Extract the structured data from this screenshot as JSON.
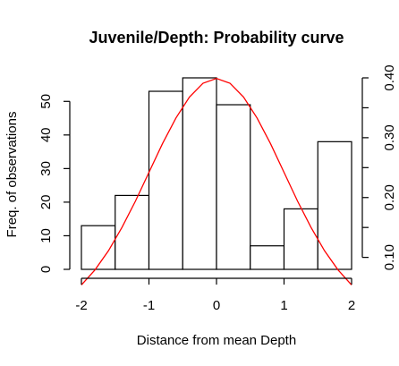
{
  "chart_data": {
    "type": "bar",
    "title": "Juvenile/Depth: Probability curve",
    "xlabel": "Distance from mean Depth",
    "ylabel": "Freq. of observations",
    "bins": [
      {
        "from": -2.0,
        "to": -1.5,
        "value": 13
      },
      {
        "from": -1.5,
        "to": -1.0,
        "value": 22
      },
      {
        "from": -1.0,
        "to": -0.5,
        "value": 53
      },
      {
        "from": -0.5,
        "to": 0.0,
        "value": 57
      },
      {
        "from": 0.0,
        "to": 0.5,
        "value": 49
      },
      {
        "from": 0.5,
        "to": 1.0,
        "value": 7
      },
      {
        "from": 1.0,
        "to": 1.5,
        "value": 18
      },
      {
        "from": 1.5,
        "to": 2.0,
        "value": 38
      }
    ],
    "xlim": [
      -2,
      2
    ],
    "ylim": [
      0,
      57
    ],
    "y2lim": [
      0.08,
      0.4
    ],
    "x_ticks": [
      -2,
      -1,
      0,
      1,
      2
    ],
    "x_tick_labels": [
      "-2",
      "-1",
      "0",
      "1",
      "2"
    ],
    "y_ticks": [
      0,
      10,
      20,
      30,
      40,
      50
    ],
    "y_tick_labels": [
      "0",
      "10",
      "20",
      "30",
      "40",
      "50"
    ],
    "y2_ticks": [
      0.1,
      0.15,
      0.2,
      0.25,
      0.3,
      0.35,
      0.4
    ],
    "y2_tick_labels": [
      "0.10",
      "0.20",
      "0.30",
      "0.40"
    ],
    "y2_labeled_ticks": [
      0.1,
      0.2,
      0.3,
      0.4
    ],
    "curve": {
      "description_hidden": false,
      "color": "#ff0000",
      "points": [
        [
          -2.0,
          0.054
        ],
        [
          -1.8,
          0.079
        ],
        [
          -1.6,
          0.111
        ],
        [
          -1.4,
          0.15
        ],
        [
          -1.2,
          0.194
        ],
        [
          -1.0,
          0.242
        ],
        [
          -0.8,
          0.29
        ],
        [
          -0.6,
          0.333
        ],
        [
          -0.4,
          0.368
        ],
        [
          -0.2,
          0.391
        ],
        [
          0.0,
          0.399
        ],
        [
          0.2,
          0.391
        ],
        [
          0.4,
          0.368
        ],
        [
          0.6,
          0.333
        ],
        [
          0.8,
          0.29
        ],
        [
          1.0,
          0.242
        ],
        [
          1.2,
          0.194
        ],
        [
          1.4,
          0.15
        ],
        [
          1.6,
          0.111
        ],
        [
          1.8,
          0.079
        ],
        [
          2.0,
          0.054
        ]
      ]
    },
    "grid": false,
    "bar_fill": "#ffffff",
    "bar_stroke": "#000000"
  }
}
